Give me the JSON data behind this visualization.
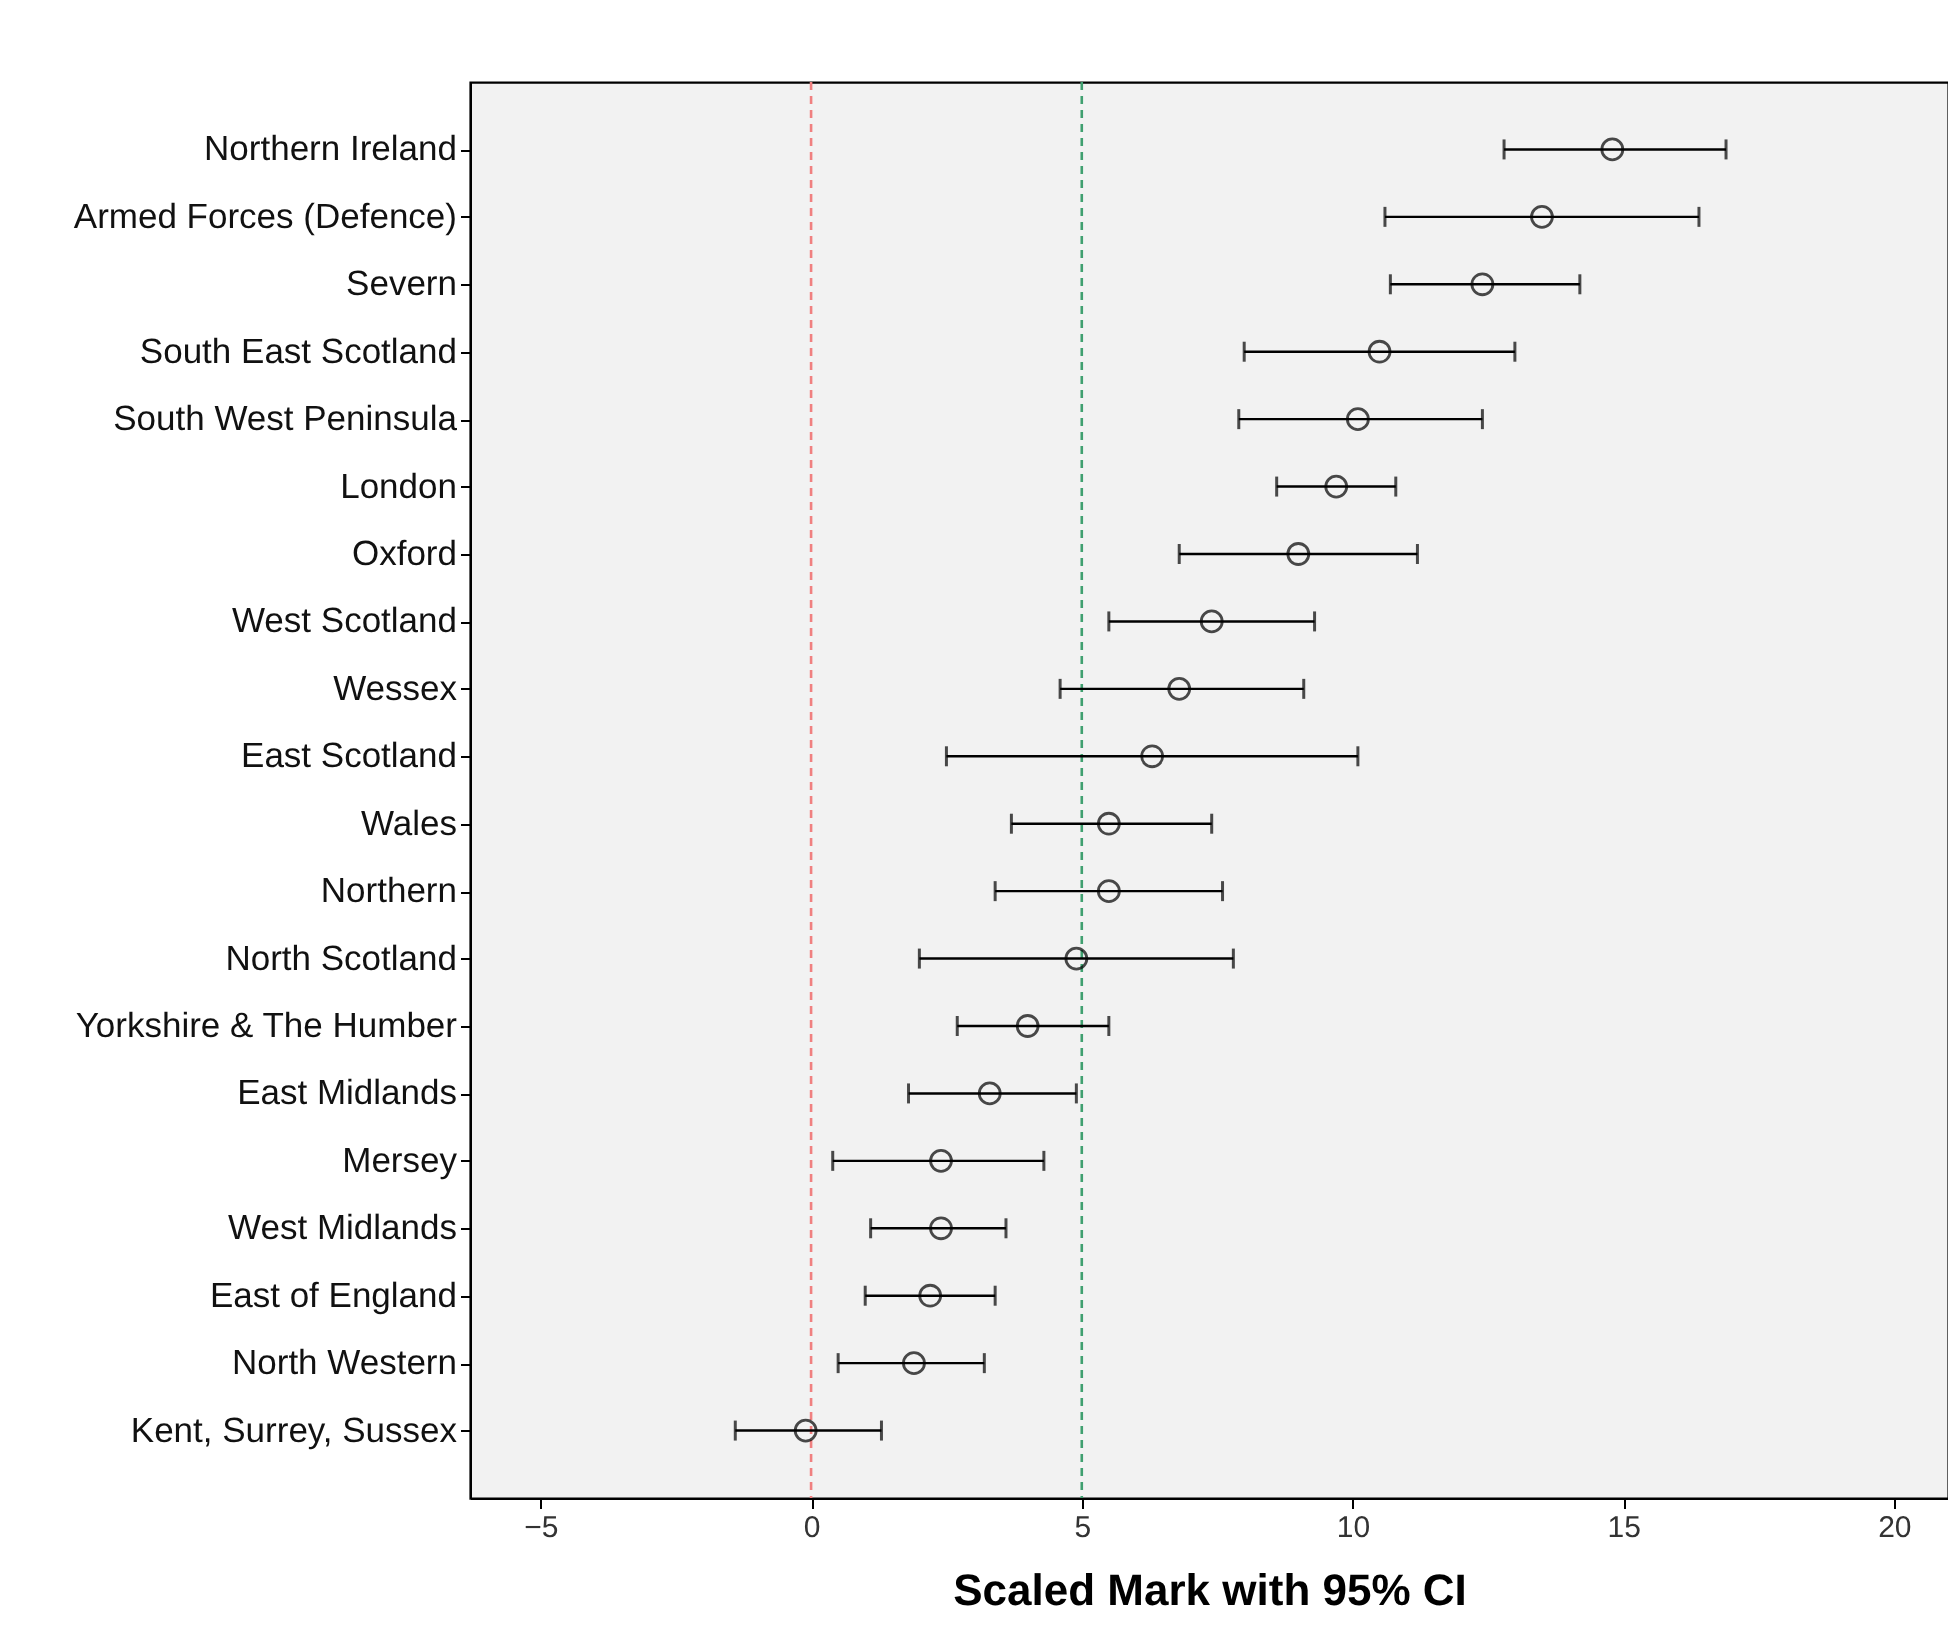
{
  "chart_data": {
    "type": "scatter",
    "orientation": "horizontal",
    "xlabel": "Scaled Mark with 95% CI",
    "categories": [
      "Northern Ireland",
      "Armed Forces (Defence)",
      "Severn",
      "South East Scotland",
      "South West Peninsula",
      "London",
      "Oxford",
      "West Scotland",
      "Wessex",
      "East Scotland",
      "Wales",
      "Northern",
      "North Scotland",
      "Yorkshire & The Humber",
      "East Midlands",
      "Mersey",
      "West Midlands",
      "East of England",
      "North Western",
      "Kent, Surrey, Sussex"
    ],
    "series": [
      {
        "color": "#000000",
        "values": [
          14.8,
          13.5,
          12.4,
          10.5,
          10.1,
          9.7,
          9.0,
          7.4,
          6.8,
          6.3,
          5.5,
          5.5,
          4.9,
          4.0,
          3.3,
          2.4,
          2.4,
          2.2,
          1.9,
          -0.1
        ],
        "errors": [
          [
            12.8,
            16.9
          ],
          [
            10.6,
            16.4
          ],
          [
            10.7,
            14.2
          ],
          [
            8.0,
            13.0
          ],
          [
            7.9,
            12.4
          ],
          [
            8.6,
            10.8
          ],
          [
            6.8,
            11.2
          ],
          [
            5.5,
            9.3
          ],
          [
            4.6,
            9.1
          ],
          [
            2.5,
            10.1
          ],
          [
            3.7,
            7.4
          ],
          [
            3.4,
            7.6
          ],
          [
            2.0,
            7.8
          ],
          [
            2.7,
            5.5
          ],
          [
            1.8,
            4.9
          ],
          [
            0.4,
            4.3
          ],
          [
            1.1,
            3.6
          ],
          [
            1.0,
            3.4
          ],
          [
            0.5,
            3.2
          ],
          [
            -1.4,
            1.3
          ]
        ]
      }
    ],
    "marker": "circle",
    "xlim": [
      -6.3,
      21
    ],
    "xticks": [
      -5,
      0,
      5,
      10,
      15,
      20
    ],
    "grid": false,
    "ref_lines": [
      {
        "axis": "x",
        "value": 0,
        "color": "#f08080",
        "line_style": "dashed"
      },
      {
        "axis": "x",
        "value": 5,
        "color": "#40a070",
        "line_style": "dashed"
      }
    ]
  }
}
